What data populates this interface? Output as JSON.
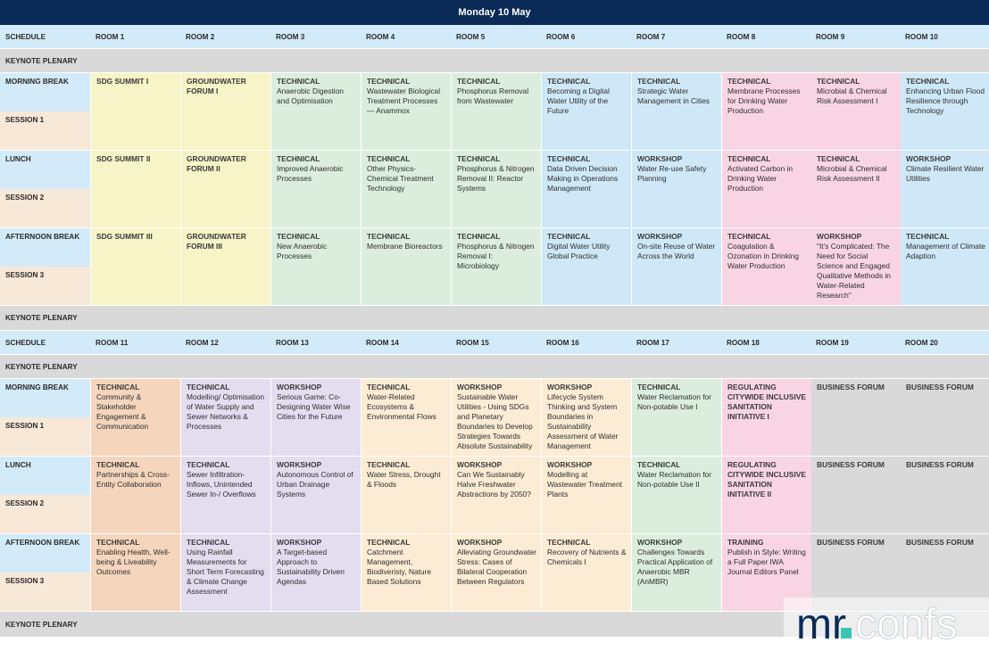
{
  "title": "Monday 10 May",
  "logo": {
    "left": "mr",
    "dot": ".",
    "right": "confs"
  },
  "colors": {
    "header_bg": "#0b2a57",
    "header_row": "#d3ebf9",
    "plenary": "#d9d9d9",
    "label_blue": "#d3ebf9",
    "label_peach": "#f8e8d8",
    "yellow": "#f7f4c8",
    "green": "#dbeedd",
    "blue": "#cfe8f7",
    "pink": "#f9d5e3",
    "orange": "#f5d6bc",
    "purple": "#e4dcef",
    "lightorange": "#fcecd4",
    "gray": "#d9d9d9"
  },
  "labels": {
    "schedule": "SCHEDULE",
    "keynote": "KEYNOTE PLENARY",
    "morning_break": "MORNING BREAK",
    "session1": "SESSION 1",
    "lunch": "LUNCH",
    "session2": "SESSION 2",
    "afternoon_break": "AFTERNOON BREAK",
    "session3": "SESSION 3"
  },
  "block1": {
    "rooms": [
      "ROOM 1",
      "ROOM 2",
      "ROOM 3",
      "ROOM 4",
      "ROOM 5",
      "ROOM 6",
      "ROOM 7",
      "ROOM 8",
      "ROOM 9",
      "ROOM 10"
    ],
    "columns": [
      {
        "color": "yellow",
        "slots": [
          {
            "cat": "SDG SUMMIT I",
            "text": ""
          },
          {
            "cat": "SDG SUMMIT II",
            "text": ""
          },
          {
            "cat": "SDG SUMMIT III",
            "text": ""
          }
        ]
      },
      {
        "color": "yellow",
        "slots": [
          {
            "cat": "GROUNDWATER FORUM I",
            "text": ""
          },
          {
            "cat": "GROUNDWATER FORUM II",
            "text": ""
          },
          {
            "cat": "GROUNDWATER FORUM III",
            "text": ""
          }
        ]
      },
      {
        "color": "green",
        "slots": [
          {
            "cat": "TECHNICAL",
            "text": "Anaerobic Digestion and Optimisation"
          },
          {
            "cat": "TECHNICAL",
            "text": "Improved Anaerobic Processes"
          },
          {
            "cat": "TECHNICAL",
            "text": "New Anaerobic Processes"
          }
        ]
      },
      {
        "color": "green",
        "slots": [
          {
            "cat": "TECHNICAL",
            "text": "Wastewater Biological Treatment Processes — Anammox"
          },
          {
            "cat": "TECHNICAL",
            "text": "Other Physics-Chemical Treatment Technology"
          },
          {
            "cat": "TECHNICAL",
            "text": "Membrane Bioreactors"
          }
        ]
      },
      {
        "color": "green",
        "slots": [
          {
            "cat": "TECHNICAL",
            "text": "Phosphorus Removal from Wastewater"
          },
          {
            "cat": "TECHNICAL",
            "text": "Phosphorus & Nitrogen Removal II: Reactor Systems"
          },
          {
            "cat": "TECHNICAL",
            "text": "Phosphorus & Nitrogen Removal I: Microbiology"
          }
        ]
      },
      {
        "color": "blue",
        "slots": [
          {
            "cat": "TECHNICAL",
            "text": "Becoming a Digital Water Utility of the Future"
          },
          {
            "cat": "TECHNICAL",
            "text": "Data Driven Decision Making in Operations Management"
          },
          {
            "cat": "TECHNICAL",
            "text": "Digital Water Utility Global Practice"
          }
        ]
      },
      {
        "color": "blue",
        "slots": [
          {
            "cat": "TECHNICAL",
            "text": "Strategic Water Management in Cities"
          },
          {
            "cat": "WORKSHOP",
            "text": "Water Re-use Safety Planning"
          },
          {
            "cat": "WORKSHOP",
            "text": "On-site Reuse of Water Across the World"
          }
        ]
      },
      {
        "color": "pink",
        "slots": [
          {
            "cat": "TECHNICAL",
            "text": "Membrane Processes for Drinking Water Production"
          },
          {
            "cat": "TECHNICAL",
            "text": "Activated Carbon in Drinking Water Production"
          },
          {
            "cat": "TECHNICAL",
            "text": "Coagulation & Ozonation in Drinking Water Production"
          }
        ]
      },
      {
        "color": "pink",
        "slots": [
          {
            "cat": "TECHNICAL",
            "text": "Microbial & Chemical Risk Assessment I"
          },
          {
            "cat": "TECHNICAL",
            "text": "Microbial & Chemical Risk Assessment II"
          },
          {
            "cat": "WORKSHOP",
            "text": "\"It's Complicated: The Need for Social Science and Engaged Qualitative Methods in Water-Related Research\""
          }
        ]
      },
      {
        "color": "blue",
        "slots": [
          {
            "cat": "TECHNICAL",
            "text": "Enhancing Urban Flood Resilience through Technology"
          },
          {
            "cat": "WORKSHOP",
            "text": "Climate Resilient Water Utilities"
          },
          {
            "cat": "TECHNICAL",
            "text": "Management of Climate Adaption"
          }
        ]
      }
    ]
  },
  "block2": {
    "rooms": [
      "ROOM 11",
      "ROOM 12",
      "ROOM 13",
      "ROOM 14",
      "ROOM 15",
      "ROOM 16",
      "ROOM 17",
      "ROOM 18",
      "ROOM 19",
      "ROOM 20"
    ],
    "columns": [
      {
        "color": "orange",
        "slots": [
          {
            "cat": "TECHNICAL",
            "text": "Community & Stakeholder Engagement & Communication"
          },
          {
            "cat": "TECHNICAL",
            "text": "Partnerships & Cross-Entity Collaboration"
          },
          {
            "cat": "TECHNICAL",
            "text": "Enabling Health, Well-being & Liveability Outcomes"
          }
        ]
      },
      {
        "color": "purple",
        "slots": [
          {
            "cat": "TECHNICAL",
            "text": "Modelling/ Optimisation of Water Supply and Sewer Networks & Processes"
          },
          {
            "cat": "TECHNICAL",
            "text": "Sewer Infiltration-Inflows, Unintended Sewer In-/ Overflows"
          },
          {
            "cat": "TECHNICAL",
            "text": "Using Rainfall Measurements for Short Term Forecasting & Climate Change Assessment"
          }
        ]
      },
      {
        "color": "purple",
        "slots": [
          {
            "cat": "WORKSHOP",
            "text": "Serious Game: Co-Designing Water Wise Cities for the Future"
          },
          {
            "cat": "WORKSHOP",
            "text": "Autonomous Control of Urban Drainage Systems"
          },
          {
            "cat": "WORKSHOP",
            "text": "A Target-based Approach to Sustainability Driven Agendas"
          }
        ]
      },
      {
        "color": "lightorange",
        "slots": [
          {
            "cat": "TECHNICAL",
            "text": "Water-Related Ecosystems & Environmental Flows"
          },
          {
            "cat": "TECHNICAL",
            "text": "Water Stress, Drought & Floods"
          },
          {
            "cat": "TECHNICAL",
            "text": "Catchment Management, Biodiveristy, Nature Based Solutions"
          }
        ]
      },
      {
        "color": "lightorange",
        "slots": [
          {
            "cat": "WORKSHOP",
            "text": "Sustainable Water Utilities - Using SDGs and Planetary Boundaries to Develop Strategies Towards Absolute Sustainability"
          },
          {
            "cat": "WORKSHOP",
            "text": "Can We Sustainably Halve Freshwater Abstractions by 2050?"
          },
          {
            "cat": "WORKSHOP",
            "text": "Alleviating Groundwater Stress: Cases of Bilateral Cooperation Between Regulators"
          }
        ]
      },
      {
        "color": "lightorange",
        "slots": [
          {
            "cat": "WORKSHOP",
            "text": "Lifecycle System Thinking and System Boundaries in Sustainability Assessment of Water Management"
          },
          {
            "cat": "WORKSHOP",
            "text": "Modelling at Wastewater Treatment Plants"
          },
          {
            "cat": "TECHNICAL",
            "text": "Recovery of Nutrients & Chemicals I"
          }
        ]
      },
      {
        "color": "green",
        "slots": [
          {
            "cat": "TECHNICAL",
            "text": "Water Reclamation for Non-potable Use I"
          },
          {
            "cat": "TECHNICAL",
            "text": "Water Reclamation for Non-potable Use II"
          },
          {
            "cat": "WORKSHOP",
            "text": "Challenges Towards Practical Application of Anaerobic MBR (AnMBR)"
          }
        ]
      },
      {
        "color": "pink",
        "slots": [
          {
            "cat": "REGULATING CITYWIDE INCLUSIVE SANITATION INITIATIVE I",
            "text": ""
          },
          {
            "cat": "REGULATING CITYWIDE INCLUSIVE SANITATION INITIATIVE II",
            "text": ""
          },
          {
            "cat": "TRAINING",
            "text": "Publish in Style: Writing a Full Paper IWA Journal Editors Panel"
          }
        ]
      },
      {
        "color": "gray",
        "slots": [
          {
            "cat": "BUSINESS FORUM",
            "text": ""
          },
          {
            "cat": "BUSINESS FORUM",
            "text": ""
          },
          {
            "cat": "BUSINESS FORUM",
            "text": ""
          }
        ]
      },
      {
        "color": "gray",
        "slots": [
          {
            "cat": "BUSINESS FORUM",
            "text": ""
          },
          {
            "cat": "BUSINESS FORUM",
            "text": ""
          },
          {
            "cat": "BUSINESS FORUM",
            "text": ""
          }
        ]
      }
    ]
  }
}
